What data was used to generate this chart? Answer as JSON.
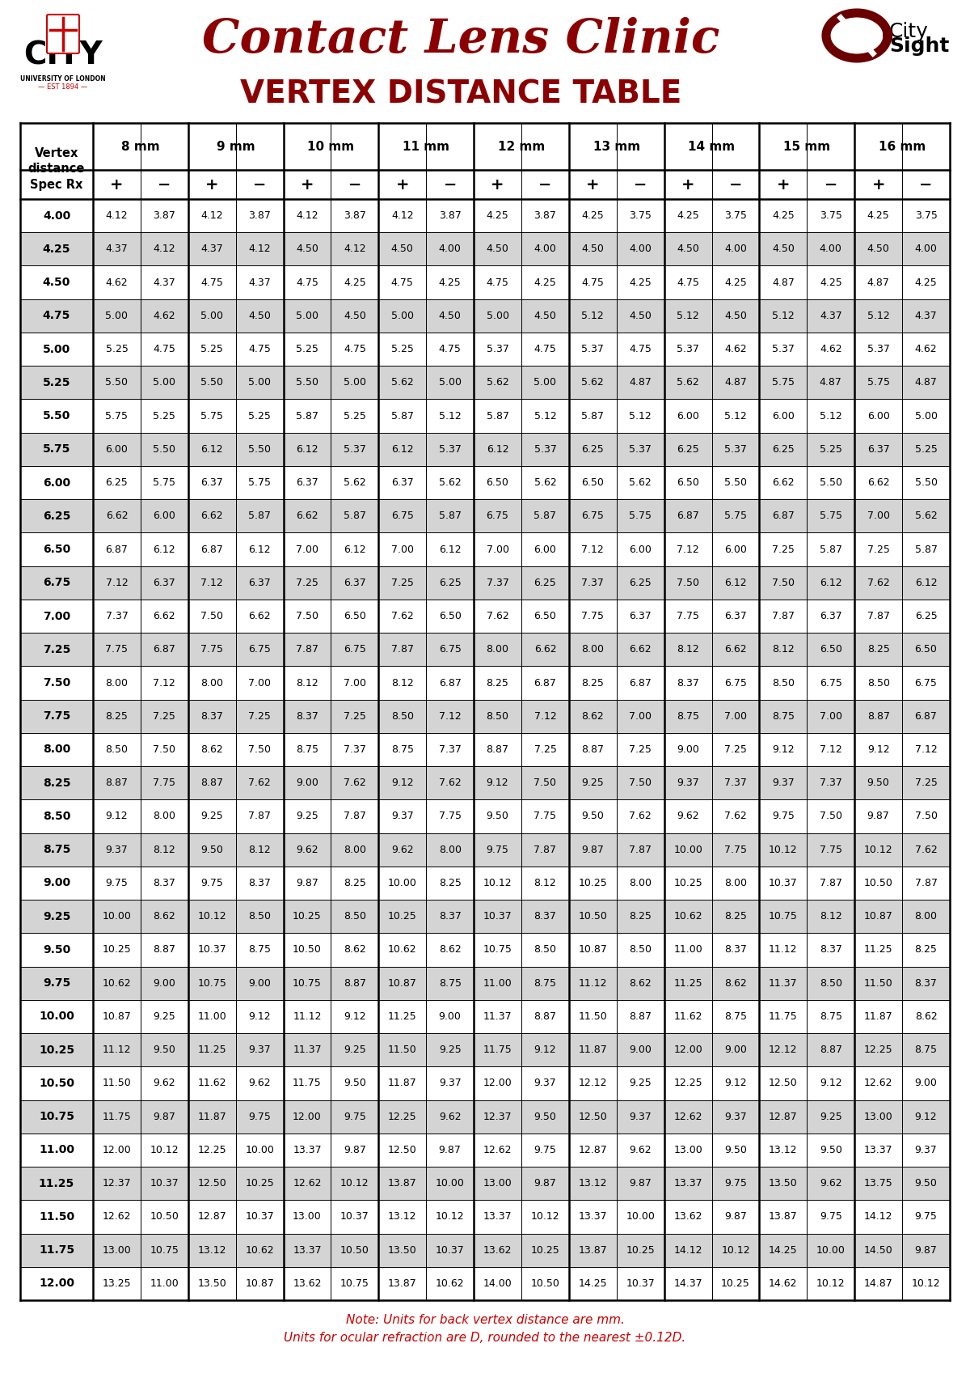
{
  "title1": "Contact Lens Clinic",
  "title2": "VERTEX DISTANCE TABLE",
  "note_line1": "Note: Units for back vertex distance are mm.",
  "note_line2": "Units for ocular refraction are D, rounded to the nearest ±0.12D.",
  "mm_labels": [
    "8 mm",
    "9 mm",
    "10 mm",
    "11 mm",
    "12 mm",
    "13 mm",
    "14 mm",
    "15 mm",
    "16 mm"
  ],
  "spec_rx": [
    4.0,
    4.25,
    4.5,
    4.75,
    5.0,
    5.25,
    5.5,
    5.75,
    6.0,
    6.25,
    6.5,
    6.75,
    7.0,
    7.25,
    7.5,
    7.75,
    8.0,
    8.25,
    8.5,
    8.75,
    9.0,
    9.25,
    9.5,
    9.75,
    10.0,
    10.25,
    10.5,
    10.75,
    11.0,
    11.25,
    11.5,
    11.75,
    12.0
  ],
  "table_data": [
    [
      4.12,
      3.87,
      4.12,
      3.87,
      4.12,
      3.87,
      4.12,
      3.87,
      4.25,
      3.87,
      4.25,
      3.75,
      4.25,
      3.75,
      4.25,
      3.75,
      4.25,
      3.75
    ],
    [
      4.37,
      4.12,
      4.37,
      4.12,
      4.5,
      4.12,
      4.5,
      4.0,
      4.5,
      4.0,
      4.5,
      4.0,
      4.5,
      4.0,
      4.5,
      4.0,
      4.5,
      4.0
    ],
    [
      4.62,
      4.37,
      4.75,
      4.37,
      4.75,
      4.25,
      4.75,
      4.25,
      4.75,
      4.25,
      4.75,
      4.25,
      4.75,
      4.25,
      4.87,
      4.25,
      4.87,
      4.25
    ],
    [
      5.0,
      4.62,
      5.0,
      4.5,
      5.0,
      4.5,
      5.0,
      4.5,
      5.0,
      4.5,
      5.12,
      4.5,
      5.12,
      4.5,
      5.12,
      4.37,
      5.12,
      4.37
    ],
    [
      5.25,
      4.75,
      5.25,
      4.75,
      5.25,
      4.75,
      5.25,
      4.75,
      5.37,
      4.75,
      5.37,
      4.75,
      5.37,
      4.62,
      5.37,
      4.62,
      5.37,
      4.62
    ],
    [
      5.5,
      5.0,
      5.5,
      5.0,
      5.5,
      5.0,
      5.62,
      5.0,
      5.62,
      5.0,
      5.62,
      4.87,
      5.62,
      4.87,
      5.75,
      4.87,
      5.75,
      4.87
    ],
    [
      5.75,
      5.25,
      5.75,
      5.25,
      5.87,
      5.25,
      5.87,
      5.12,
      5.87,
      5.12,
      5.87,
      5.12,
      6.0,
      5.12,
      6.0,
      5.12,
      6.0,
      5.0
    ],
    [
      6.0,
      5.5,
      6.12,
      5.5,
      6.12,
      5.37,
      6.12,
      5.37,
      6.12,
      5.37,
      6.25,
      5.37,
      6.25,
      5.37,
      6.25,
      5.25,
      6.37,
      5.25
    ],
    [
      6.25,
      5.75,
      6.37,
      5.75,
      6.37,
      5.62,
      6.37,
      5.62,
      6.5,
      5.62,
      6.5,
      5.62,
      6.5,
      5.5,
      6.62,
      5.5,
      6.62,
      5.5
    ],
    [
      6.62,
      6.0,
      6.62,
      5.87,
      6.62,
      5.87,
      6.75,
      5.87,
      6.75,
      5.87,
      6.75,
      5.75,
      6.87,
      5.75,
      6.87,
      5.75,
      7.0,
      5.62
    ],
    [
      6.87,
      6.12,
      6.87,
      6.12,
      7.0,
      6.12,
      7.0,
      6.12,
      7.0,
      6.0,
      7.12,
      6.0,
      7.12,
      6.0,
      7.25,
      5.87,
      7.25,
      5.87
    ],
    [
      7.12,
      6.37,
      7.12,
      6.37,
      7.25,
      6.37,
      7.25,
      6.25,
      7.37,
      6.25,
      7.37,
      6.25,
      7.5,
      6.12,
      7.5,
      6.12,
      7.62,
      6.12
    ],
    [
      7.37,
      6.62,
      7.5,
      6.62,
      7.5,
      6.5,
      7.62,
      6.5,
      7.62,
      6.5,
      7.75,
      6.37,
      7.75,
      6.37,
      7.87,
      6.37,
      7.87,
      6.25
    ],
    [
      7.75,
      6.87,
      7.75,
      6.75,
      7.87,
      6.75,
      7.87,
      6.75,
      8.0,
      6.62,
      8.0,
      6.62,
      8.12,
      6.62,
      8.12,
      6.5,
      8.25,
      6.5
    ],
    [
      8.0,
      7.12,
      8.0,
      7.0,
      8.12,
      7.0,
      8.12,
      6.87,
      8.25,
      6.87,
      8.25,
      6.87,
      8.37,
      6.75,
      8.5,
      6.75,
      8.5,
      6.75
    ],
    [
      8.25,
      7.25,
      8.37,
      7.25,
      8.37,
      7.25,
      8.5,
      7.12,
      8.5,
      7.12,
      8.62,
      7.0,
      8.75,
      7.0,
      8.75,
      7.0,
      8.87,
      6.87
    ],
    [
      8.5,
      7.5,
      8.62,
      7.5,
      8.75,
      7.37,
      8.75,
      7.37,
      8.87,
      7.25,
      8.87,
      7.25,
      9.0,
      7.25,
      9.12,
      7.12,
      9.12,
      7.12
    ],
    [
      8.87,
      7.75,
      8.87,
      7.62,
      9.0,
      7.62,
      9.12,
      7.62,
      9.12,
      7.5,
      9.25,
      7.5,
      9.37,
      7.37,
      9.37,
      7.37,
      9.5,
      7.25
    ],
    [
      9.12,
      8.0,
      9.25,
      7.87,
      9.25,
      7.87,
      9.37,
      7.75,
      9.5,
      7.75,
      9.5,
      7.62,
      9.62,
      7.62,
      9.75,
      7.5,
      9.87,
      7.5
    ],
    [
      9.37,
      8.12,
      9.5,
      8.12,
      9.62,
      8.0,
      9.62,
      8.0,
      9.75,
      7.87,
      9.87,
      7.87,
      10.0,
      7.75,
      10.12,
      7.75,
      10.12,
      7.62
    ],
    [
      9.75,
      8.37,
      9.75,
      8.37,
      9.87,
      8.25,
      10.0,
      8.25,
      10.12,
      8.12,
      10.25,
      8.0,
      10.25,
      8.0,
      10.37,
      7.87,
      10.5,
      7.87
    ],
    [
      10.0,
      8.62,
      10.12,
      8.5,
      10.25,
      8.5,
      10.25,
      8.37,
      10.37,
      8.37,
      10.5,
      8.25,
      10.62,
      8.25,
      10.75,
      8.12,
      10.87,
      8.0
    ],
    [
      10.25,
      8.87,
      10.37,
      8.75,
      10.5,
      8.62,
      10.62,
      8.62,
      10.75,
      8.5,
      10.87,
      8.5,
      11.0,
      8.37,
      11.12,
      8.37,
      11.25,
      8.25
    ],
    [
      10.62,
      9.0,
      10.75,
      9.0,
      10.75,
      8.87,
      10.87,
      8.75,
      11.0,
      8.75,
      11.12,
      8.62,
      11.25,
      8.62,
      11.37,
      8.5,
      11.5,
      8.37
    ],
    [
      10.87,
      9.25,
      11.0,
      9.12,
      11.12,
      9.12,
      11.25,
      9.0,
      11.37,
      8.87,
      11.5,
      8.87,
      11.62,
      8.75,
      11.75,
      8.75,
      11.87,
      8.62
    ],
    [
      11.12,
      9.5,
      11.25,
      9.37,
      11.37,
      9.25,
      11.5,
      9.25,
      11.75,
      9.12,
      11.87,
      9.0,
      12.0,
      9.0,
      12.12,
      8.87,
      12.25,
      8.75
    ],
    [
      11.5,
      9.62,
      11.62,
      9.62,
      11.75,
      9.5,
      11.87,
      9.37,
      12.0,
      9.37,
      12.12,
      9.25,
      12.25,
      9.12,
      12.5,
      9.12,
      12.62,
      9.0
    ],
    [
      11.75,
      9.87,
      11.87,
      9.75,
      12.0,
      9.75,
      12.25,
      9.62,
      12.37,
      9.5,
      12.5,
      9.37,
      12.62,
      9.37,
      12.87,
      9.25,
      13.0,
      9.12
    ],
    [
      12.0,
      10.12,
      12.25,
      10.0,
      13.37,
      9.87,
      12.5,
      9.87,
      12.62,
      9.75,
      12.87,
      9.62,
      13.0,
      9.5,
      13.12,
      9.5,
      13.37,
      9.37
    ],
    [
      12.37,
      10.37,
      12.5,
      10.25,
      12.62,
      10.12,
      13.87,
      10.0,
      13.0,
      9.87,
      13.12,
      9.87,
      13.37,
      9.75,
      13.5,
      9.62,
      13.75,
      9.5
    ],
    [
      12.62,
      10.5,
      12.87,
      10.37,
      13.0,
      10.37,
      13.12,
      10.12,
      13.37,
      10.12,
      13.37,
      10.0,
      13.62,
      9.87,
      13.87,
      9.75,
      14.12,
      9.75
    ],
    [
      13.0,
      10.75,
      13.12,
      10.62,
      13.37,
      10.5,
      13.5,
      10.37,
      13.62,
      10.25,
      13.87,
      10.25,
      14.12,
      10.12,
      14.25,
      10.0,
      14.5,
      9.87
    ],
    [
      13.25,
      11.0,
      13.5,
      10.87,
      13.62,
      10.75,
      13.87,
      10.62,
      14.0,
      10.5,
      14.25,
      10.37,
      14.37,
      10.25,
      14.62,
      10.12,
      14.87,
      10.12
    ]
  ],
  "bg_color": "#ffffff",
  "alt_row_bg": "#d4d4d4",
  "border_color": "#000000",
  "title1_color": "#8b0000",
  "title2_color": "#8b0000",
  "text_color": "#000000",
  "note_color": "#cc0000",
  "city_color": "#000000",
  "city_red": "#cc0000"
}
